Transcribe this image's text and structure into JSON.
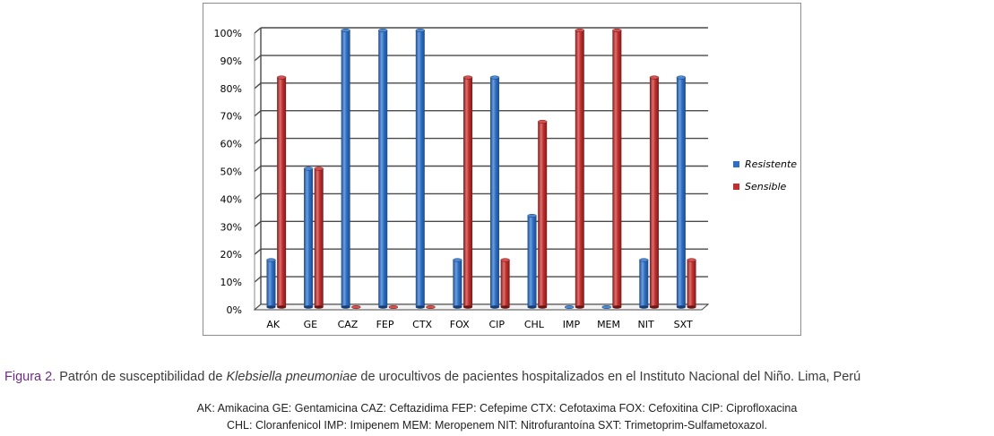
{
  "chart_data": {
    "type": "bar",
    "categories": [
      "AK",
      "GE",
      "CAZ",
      "FEP",
      "CTX",
      "FOX",
      "CIP",
      "CHL",
      "IMP",
      "MEM",
      "NIT",
      "SXT"
    ],
    "series": [
      {
        "name": "Resistente",
        "color": "#2e6fc4",
        "values": [
          17,
          50,
          100,
          100,
          100,
          17,
          83,
          33,
          0,
          0,
          17,
          83
        ]
      },
      {
        "name": "Sensible",
        "color": "#c0302f",
        "values": [
          83,
          50,
          0,
          0,
          0,
          83,
          17,
          67,
          100,
          100,
          83,
          17
        ]
      }
    ],
    "ylim": [
      0,
      100
    ],
    "yticks": [
      "0%",
      "10%",
      "20%",
      "30%",
      "40%",
      "50%",
      "60%",
      "70%",
      "80%",
      "90%",
      "100%"
    ],
    "grid": true,
    "legend_position": "right",
    "style": "3d cylinder"
  },
  "legend": {
    "resistente": "Resistente",
    "sensible": "Sensible"
  },
  "caption": {
    "figure_label": "Figura 2.",
    "text_before": " Patrón de susceptibilidad de ",
    "species": "Klebsiella pneumoniae",
    "text_after": " de urocultivos de pacientes hospitalizados en el Instituto Nacional del Niño. Lima, Perú"
  },
  "abbreviations": {
    "line1": "AK: Amikacina   GE: Gentamicina   CAZ: Ceftazidima   FEP: Cefepime   CTX: Cefotaxima   FOX: Cefoxitina   CIP: Ciprofloxacina",
    "line2": "CHL: Cloranfenicol   IMP: Imipenem   MEM: Meropenem   NIT: Nitrofurantoína   SXT: Trimetoprim-Sulfametoxazol."
  }
}
